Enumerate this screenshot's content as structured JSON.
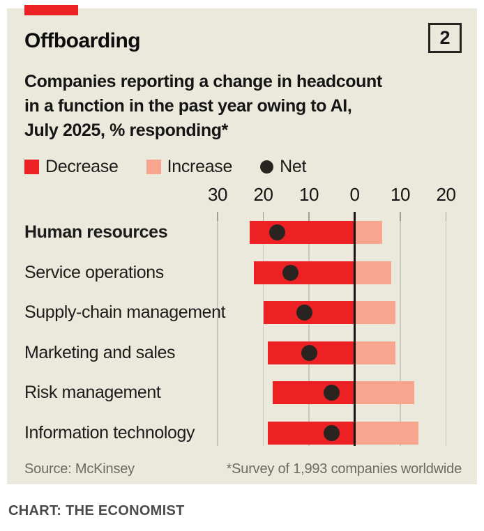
{
  "page": {
    "panel_number": "2",
    "title": "Offboarding",
    "subtitle_lines": [
      "Companies reporting a change in headcount",
      "in a function in the past year owing to AI,",
      "July 2025, % responding*"
    ],
    "footer_credit": "CHART: THE ECONOMIST"
  },
  "legend": [
    {
      "label": "Decrease"
    },
    {
      "label": "Increase"
    },
    {
      "label": "Net"
    }
  ],
  "chart_data": {
    "type": "bar",
    "variant": "diverging-horizontal",
    "title": "Offboarding",
    "subtitle": "Companies reporting a change in headcount in a function in the past year owing to AI, July 2025, % responding*",
    "categories": [
      "Human resources",
      "Service operations",
      "Supply-chain management",
      "Marketing and sales",
      "Risk management",
      "Information technology"
    ],
    "bold_category_index": 0,
    "series": [
      {
        "name": "Decrease",
        "side": "left",
        "color": "#ed2124",
        "values": [
          23,
          22,
          20,
          19,
          18,
          19
        ]
      },
      {
        "name": "Increase",
        "side": "right",
        "color": "#f7a58f",
        "values": [
          6,
          8,
          9,
          9,
          13,
          14
        ]
      },
      {
        "name": "Net",
        "style": "dot",
        "color": "#29241f",
        "values": [
          -17,
          -14,
          -11,
          -10,
          -5,
          -5
        ]
      }
    ],
    "x_axis": {
      "tick_labels": [
        "30",
        "20",
        "10",
        "0",
        "10",
        "20"
      ],
      "tick_values": [
        -30,
        -20,
        -10,
        0,
        10,
        20
      ],
      "unit": "%",
      "grid": true,
      "zero_line": true
    },
    "xlim": [
      -35,
      25
    ],
    "legend_position": "top",
    "grid_color": "#cac8bc",
    "tick_color": "#a19f95",
    "zero_line_color": "#161616"
  },
  "footer": {
    "source": "Source: McKinsey",
    "note": "*Survey of 1,993 companies worldwide"
  }
}
